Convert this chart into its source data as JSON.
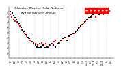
{
  "title": "Milwaukee Weather  Solar Radiation",
  "subtitle": "Avg per Day W/m²/minute",
  "bg_color": "#ffffff",
  "grid_color": "#b0b0b0",
  "dot_color_red": "#ff0000",
  "dot_color_black": "#000000",
  "legend_box_color": "#ff0000",
  "ylim": [
    0,
    10
  ],
  "xlim": [
    0,
    53
  ],
  "title_fontsize": 3.0,
  "subtitle_fontsize": 2.8,
  "tick_fontsize": 1.8,
  "y_ticks": [
    1,
    2,
    3,
    4,
    5,
    6,
    7,
    8,
    9
  ],
  "y_tick_labels": [
    "1",
    "2",
    "3",
    "4",
    "5",
    "6",
    "7",
    "8",
    "9"
  ],
  "x_tick_positions": [
    1,
    3,
    5,
    7,
    9,
    11,
    13,
    15,
    17,
    19,
    21,
    23,
    25,
    27,
    29,
    31,
    33,
    35,
    37,
    39,
    41,
    43,
    45,
    47,
    49,
    51
  ],
  "x_tick_labels": [
    "1/1",
    "1/15",
    "2/1",
    "2/15",
    "3/1",
    "3/15",
    "4/1",
    "4/15",
    "5/1",
    "5/15",
    "6/1",
    "6/15",
    "7/1",
    "7/15",
    "8/1",
    "8/15",
    "9/1",
    "9/15",
    "10/1",
    "10/15",
    "11/1",
    "11/15",
    "12/1",
    "12/15",
    "1/1",
    "1/15"
  ],
  "vgrid_positions": [
    5,
    9,
    13,
    17,
    21,
    25,
    29,
    33,
    37,
    41,
    45,
    49
  ],
  "red_x": [
    0.5,
    1.2,
    1.8,
    2.5,
    3.2,
    4.0,
    4.8,
    5.5,
    6.5,
    7.2,
    8.0,
    9.0,
    9.8,
    10.5,
    11.5,
    12.5,
    13.5,
    14.5,
    15.5,
    16.5,
    17.5,
    18.5,
    19.5,
    20.5,
    21.5,
    22.5,
    23.5,
    24.5,
    25.5,
    26.5,
    27.5,
    28.5,
    29.5,
    30.5,
    31.5,
    32.5,
    33.5,
    34.5,
    35.5,
    36.5,
    37.5,
    38.5,
    39.5,
    40.5,
    41.5,
    42.5,
    43.5,
    44.5,
    45.5,
    46.5,
    47.5,
    48.5,
    49.5,
    50.5
  ],
  "red_y": [
    8.5,
    8.0,
    8.8,
    7.5,
    7.2,
    7.0,
    6.5,
    6.2,
    5.5,
    5.0,
    4.8,
    4.2,
    3.8,
    3.5,
    3.2,
    3.0,
    2.8,
    2.5,
    2.8,
    3.0,
    2.5,
    2.8,
    2.2,
    2.5,
    2.8,
    3.2,
    3.5,
    2.8,
    3.0,
    3.5,
    3.8,
    4.0,
    3.5,
    4.2,
    4.5,
    4.8,
    5.2,
    5.5,
    6.0,
    6.5,
    6.8,
    7.2,
    7.5,
    7.8,
    8.2,
    8.5,
    8.0,
    8.8,
    9.0,
    9.2,
    8.5,
    9.0,
    8.8,
    9.2
  ],
  "black_x": [
    0.8,
    1.5,
    2.2,
    3.0,
    3.8,
    4.5,
    5.2,
    6.0,
    6.8,
    7.5,
    8.5,
    9.5,
    10.2,
    11.2,
    12.2,
    13.2,
    14.2,
    15.2,
    16.2,
    17.2,
    18.2,
    19.2,
    20.2,
    21.2,
    22.2,
    23.2,
    24.2,
    25.2,
    26.2,
    27.2,
    28.2,
    29.2,
    30.2,
    31.2,
    32.2,
    33.2,
    34.2,
    35.2,
    36.2,
    37.2,
    38.2,
    39.2,
    40.2,
    41.2,
    42.2,
    43.2,
    44.2,
    45.2,
    46.2,
    47.2,
    48.2,
    49.2,
    50.2
  ],
  "black_y": [
    9.0,
    8.8,
    8.2,
    7.8,
    7.5,
    7.0,
    6.8,
    6.0,
    5.5,
    5.2,
    4.5,
    4.0,
    3.8,
    3.2,
    2.8,
    2.5,
    2.2,
    2.0,
    2.2,
    2.5,
    2.0,
    2.2,
    2.5,
    2.8,
    2.5,
    2.2,
    2.8,
    3.0,
    3.5,
    3.8,
    4.0,
    3.5,
    4.2,
    4.5,
    4.8,
    5.0,
    5.5,
    5.8,
    6.2,
    6.5,
    7.0,
    7.5,
    7.8,
    8.0,
    8.5,
    8.8,
    9.0,
    8.5,
    9.0,
    9.2,
    8.8,
    9.5,
    9.0
  ]
}
